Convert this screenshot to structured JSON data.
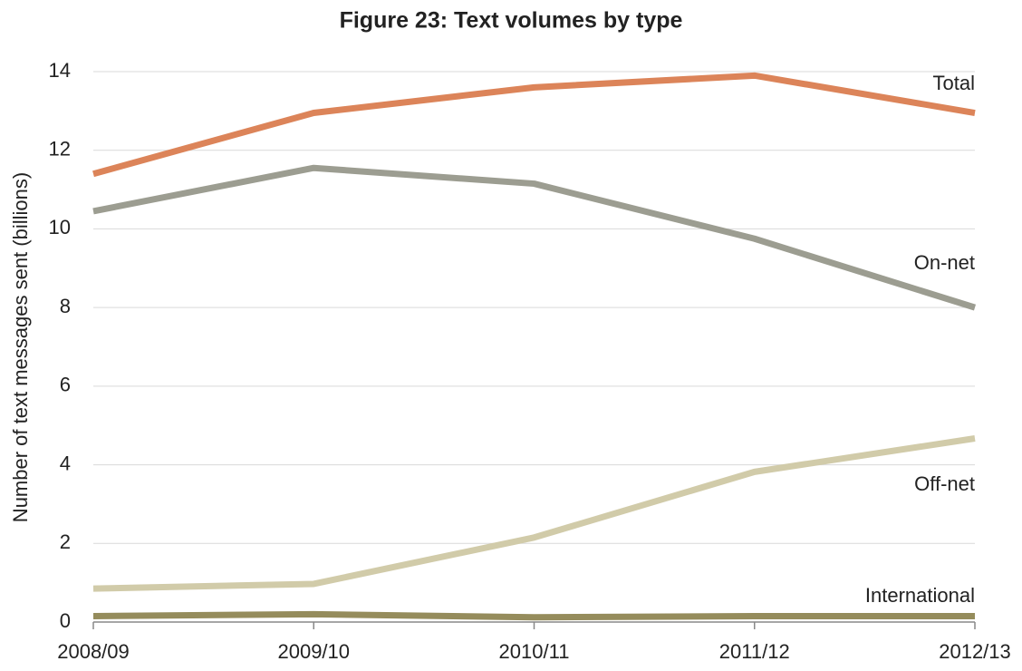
{
  "chart_data": {
    "type": "line",
    "title": "Figure 23: Text volumes by type",
    "y_label": "Number of text messages sent (billions)",
    "categories": [
      "2008/09",
      "2009/10",
      "2010/11",
      "2011/12",
      "2012/13"
    ],
    "series": [
      {
        "name": "Total",
        "color": "#dc8459",
        "values": [
          11.4,
          12.95,
          13.6,
          13.9,
          12.95
        ]
      },
      {
        "name": "On-net",
        "color": "#9c9d91",
        "values": [
          10.45,
          11.55,
          11.15,
          9.75,
          8.0
        ]
      },
      {
        "name": "Off-net",
        "color": "#d1cba9",
        "values": [
          0.85,
          0.97,
          2.15,
          3.82,
          4.67
        ]
      },
      {
        "name": "International",
        "color": "#958c5c",
        "values": [
          0.15,
          0.2,
          0.12,
          0.15,
          0.15
        ]
      }
    ],
    "ylim": [
      0,
      14
    ],
    "yticks": [
      0,
      2,
      4,
      6,
      8,
      10,
      12,
      14
    ],
    "grid": true
  }
}
